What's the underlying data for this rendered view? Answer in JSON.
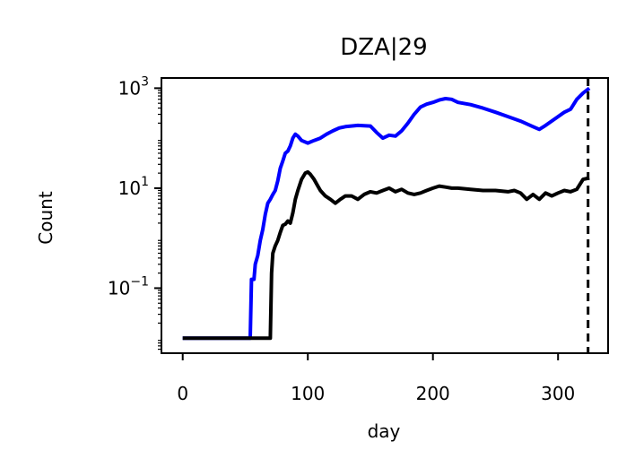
{
  "chart_data": {
    "type": "line",
    "title": "DZA|29",
    "xlabel": "day",
    "ylabel": "Count",
    "yscale": "log",
    "xlim": [
      -17,
      340
    ],
    "ylim": [
      0.005,
      1600
    ],
    "xticks": [
      0,
      100,
      200,
      300
    ],
    "xtick_labels": [
      "0",
      "100",
      "200",
      "300"
    ],
    "yticks": [
      0.1,
      10,
      1000
    ],
    "ytick_base": "10",
    "ytick_exponents": [
      "−1",
      "1",
      "3"
    ],
    "grid": false,
    "vline": {
      "x": 324,
      "style": "dashed",
      "color": "#000000"
    },
    "series": [
      {
        "color": "#0000ff",
        "points": [
          [
            0,
            0.01
          ],
          [
            54,
            0.01
          ],
          [
            55,
            0.15
          ],
          [
            57,
            0.15
          ],
          [
            58,
            0.3
          ],
          [
            60,
            0.45
          ],
          [
            62,
            0.9
          ],
          [
            64,
            1.5
          ],
          [
            66,
            3.0
          ],
          [
            68,
            5.0
          ],
          [
            70,
            6.0
          ],
          [
            72,
            7.5
          ],
          [
            74,
            9.0
          ],
          [
            76,
            14
          ],
          [
            78,
            25
          ],
          [
            80,
            35
          ],
          [
            82,
            50
          ],
          [
            84,
            55
          ],
          [
            86,
            70
          ],
          [
            88,
            100
          ],
          [
            90,
            120
          ],
          [
            92,
            110
          ],
          [
            95,
            90
          ],
          [
            100,
            80
          ],
          [
            105,
            90
          ],
          [
            110,
            100
          ],
          [
            115,
            120
          ],
          [
            120,
            140
          ],
          [
            125,
            160
          ],
          [
            130,
            170
          ],
          [
            140,
            180
          ],
          [
            150,
            175
          ],
          [
            155,
            130
          ],
          [
            160,
            100
          ],
          [
            165,
            115
          ],
          [
            170,
            110
          ],
          [
            175,
            140
          ],
          [
            180,
            200
          ],
          [
            185,
            300
          ],
          [
            190,
            420
          ],
          [
            195,
            480
          ],
          [
            200,
            520
          ],
          [
            205,
            580
          ],
          [
            210,
            620
          ],
          [
            215,
            600
          ],
          [
            220,
            520
          ],
          [
            230,
            470
          ],
          [
            240,
            400
          ],
          [
            250,
            330
          ],
          [
            260,
            270
          ],
          [
            270,
            220
          ],
          [
            280,
            170
          ],
          [
            285,
            150
          ],
          [
            290,
            180
          ],
          [
            300,
            270
          ],
          [
            305,
            330
          ],
          [
            310,
            380
          ],
          [
            315,
            600
          ],
          [
            320,
            800
          ],
          [
            325,
            1000
          ]
        ]
      },
      {
        "color": "#000000",
        "points": [
          [
            0,
            0.01
          ],
          [
            70,
            0.01
          ],
          [
            71,
            0.2
          ],
          [
            72,
            0.5
          ],
          [
            74,
            0.7
          ],
          [
            76,
            0.9
          ],
          [
            78,
            1.3
          ],
          [
            80,
            1.8
          ],
          [
            82,
            1.9
          ],
          [
            84,
            2.2
          ],
          [
            86,
            2.0
          ],
          [
            88,
            3.2
          ],
          [
            90,
            6.0
          ],
          [
            92,
            9.0
          ],
          [
            95,
            15
          ],
          [
            98,
            20
          ],
          [
            100,
            21
          ],
          [
            102,
            19
          ],
          [
            105,
            15
          ],
          [
            108,
            11
          ],
          [
            110,
            9
          ],
          [
            114,
            7
          ],
          [
            118,
            6
          ],
          [
            122,
            5
          ],
          [
            126,
            6
          ],
          [
            130,
            7
          ],
          [
            135,
            7
          ],
          [
            140,
            6
          ],
          [
            145,
            7.5
          ],
          [
            150,
            8.5
          ],
          [
            155,
            8
          ],
          [
            160,
            9
          ],
          [
            165,
            10
          ],
          [
            170,
            8.5
          ],
          [
            175,
            9.5
          ],
          [
            180,
            8
          ],
          [
            185,
            7.5
          ],
          [
            190,
            8
          ],
          [
            195,
            9
          ],
          [
            200,
            10
          ],
          [
            205,
            11
          ],
          [
            210,
            10.5
          ],
          [
            215,
            10
          ],
          [
            220,
            10
          ],
          [
            230,
            9.5
          ],
          [
            240,
            9
          ],
          [
            250,
            9
          ],
          [
            260,
            8.5
          ],
          [
            265,
            9
          ],
          [
            270,
            8
          ],
          [
            275,
            6
          ],
          [
            280,
            7.5
          ],
          [
            285,
            6
          ],
          [
            290,
            8
          ],
          [
            295,
            7
          ],
          [
            300,
            8
          ],
          [
            305,
            9
          ],
          [
            310,
            8.5
          ],
          [
            315,
            9.5
          ],
          [
            320,
            15
          ],
          [
            325,
            16
          ]
        ]
      }
    ]
  }
}
